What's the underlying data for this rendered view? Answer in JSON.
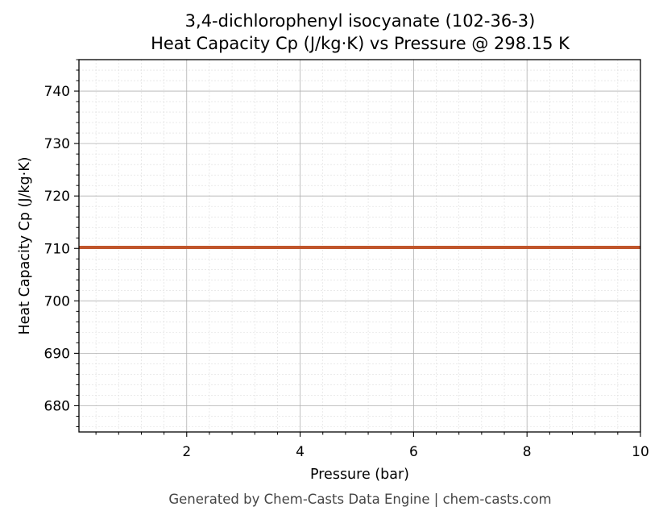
{
  "chart_data": {
    "type": "line",
    "title": [
      "3,4-dichlorophenyl isocyanate (102-36-3)",
      "Heat Capacity Cp (J/kg·K) vs Pressure @ 298.15 K"
    ],
    "xlabel": "Pressure (bar)",
    "ylabel": "Heat Capacity Cp (J/kg·K)",
    "xlim": [
      0.1,
      10
    ],
    "ylim": [
      675,
      746
    ],
    "xticks": [
      2,
      4,
      6,
      8,
      10
    ],
    "yticks": [
      680,
      690,
      700,
      710,
      720,
      730,
      740
    ],
    "grid": true,
    "series": [
      {
        "color": "#c0552b",
        "x": [
          0.1,
          10
        ],
        "y": [
          710.2,
          710.2
        ]
      }
    ],
    "footer": "Generated by Chem-Casts Data Engine | chem-casts.com"
  }
}
